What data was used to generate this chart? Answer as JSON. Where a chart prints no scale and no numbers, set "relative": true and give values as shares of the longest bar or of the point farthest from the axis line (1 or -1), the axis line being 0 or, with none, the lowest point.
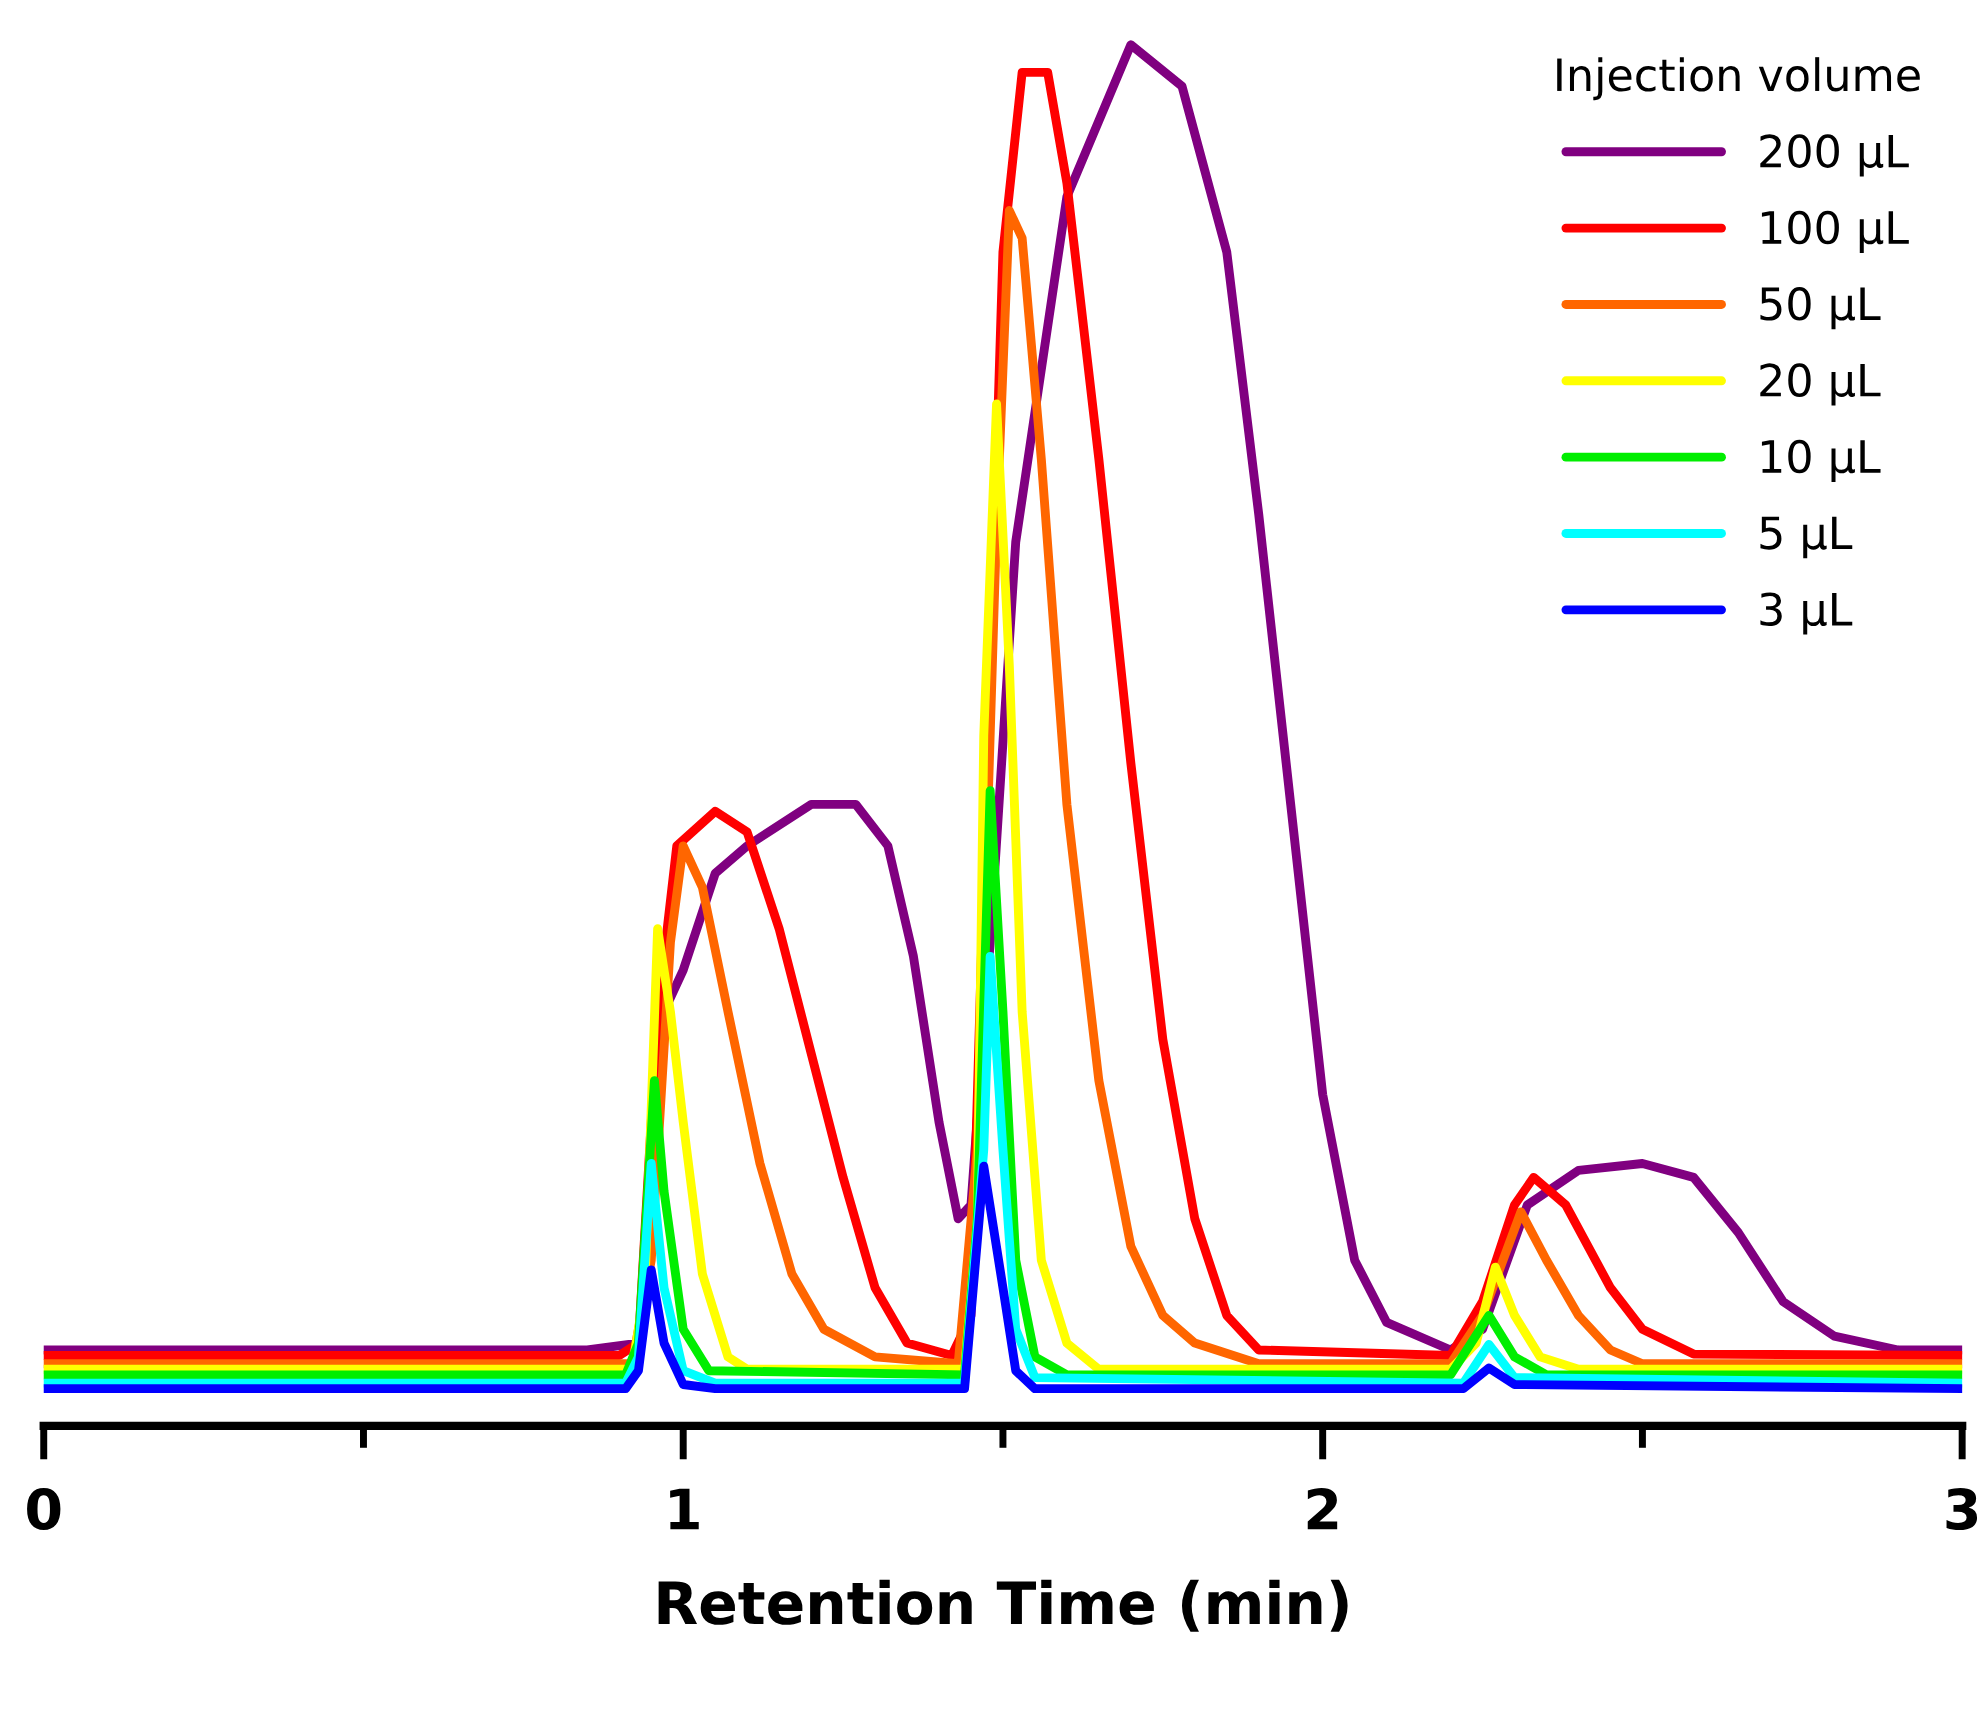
{
  "chart_data": {
    "type": "line",
    "relative": true,
    "xlabel": "Retention Time (min)",
    "legend_title": "Injection volume",
    "legend": "top right",
    "grid": false,
    "tick_labels": "x",
    "line_style": "solid",
    "marker": "none",
    "xlim": [
      0,
      3
    ],
    "xticks": [
      0,
      {
        "value": 0.5,
        "label": null
      },
      1,
      {
        "value": 1.5,
        "label": null
      },
      2,
      {
        "value": 2.5,
        "label": null
      },
      3
    ],
    "series": [
      {
        "name": "200 µL",
        "color": "#800080",
        "x": [
          0,
          0.85,
          0.93,
          0.95,
          0.97,
          1.0,
          1.05,
          1.1,
          1.2,
          1.27,
          1.32,
          1.36,
          1.4,
          1.43,
          1.45,
          1.48,
          1.52,
          1.6,
          1.7,
          1.78,
          1.85,
          1.9,
          1.95,
          2.0,
          2.05,
          2.1,
          2.2,
          2.25,
          2.32,
          2.4,
          2.5,
          2.58,
          2.65,
          2.72,
          2.8,
          2.9,
          3.0
        ],
        "values": [
          0.055,
          0.055,
          0.06,
          0.15,
          0.3,
          0.33,
          0.4,
          0.42,
          0.45,
          0.45,
          0.42,
          0.34,
          0.22,
          0.15,
          0.16,
          0.35,
          0.64,
          0.89,
          1.0,
          0.97,
          0.85,
          0.66,
          0.45,
          0.24,
          0.12,
          0.075,
          0.055,
          0.07,
          0.16,
          0.185,
          0.19,
          0.18,
          0.14,
          0.09,
          0.065,
          0.055,
          0.055
        ]
      },
      {
        "name": "100 µL",
        "color": "#ff0000",
        "x": [
          0,
          0.9,
          0.93,
          0.96,
          0.99,
          1.05,
          1.1,
          1.15,
          1.2,
          1.25,
          1.3,
          1.35,
          1.42,
          1.45,
          1.47,
          1.5,
          1.53,
          1.57,
          1.6,
          1.65,
          1.7,
          1.75,
          1.8,
          1.85,
          1.9,
          2.2,
          2.25,
          2.3,
          2.33,
          2.38,
          2.45,
          2.5,
          2.58,
          3.0
        ],
        "values": [
          0.051,
          0.051,
          0.06,
          0.3,
          0.42,
          0.445,
          0.43,
          0.36,
          0.27,
          0.18,
          0.1,
          0.06,
          0.051,
          0.08,
          0.4,
          0.85,
          0.98,
          0.98,
          0.9,
          0.7,
          0.48,
          0.28,
          0.15,
          0.08,
          0.055,
          0.051,
          0.09,
          0.16,
          0.18,
          0.16,
          0.1,
          0.07,
          0.052,
          0.051
        ]
      },
      {
        "name": "50 µL",
        "color": "#ff6600",
        "x": [
          0,
          0.92,
          0.95,
          0.98,
          1.0,
          1.03,
          1.07,
          1.12,
          1.17,
          1.22,
          1.3,
          1.43,
          1.46,
          1.49,
          1.51,
          1.53,
          1.56,
          1.6,
          1.65,
          1.7,
          1.75,
          1.8,
          1.9,
          2.2,
          2.25,
          2.29,
          2.31,
          2.35,
          2.4,
          2.45,
          2.5,
          3.0
        ],
        "values": [
          0.045,
          0.045,
          0.12,
          0.35,
          0.42,
          0.39,
          0.3,
          0.19,
          0.11,
          0.07,
          0.05,
          0.045,
          0.2,
          0.65,
          0.88,
          0.86,
          0.7,
          0.45,
          0.25,
          0.13,
          0.08,
          0.06,
          0.045,
          0.045,
          0.08,
          0.13,
          0.155,
          0.12,
          0.08,
          0.055,
          0.045,
          0.045
        ]
      },
      {
        "name": "20 µL",
        "color": "#ffff00",
        "x": [
          0,
          0.92,
          0.94,
          0.96,
          0.98,
          1.0,
          1.03,
          1.07,
          1.1,
          1.44,
          1.46,
          1.47,
          1.49,
          1.51,
          1.53,
          1.56,
          1.6,
          1.65,
          2.2,
          2.24,
          2.27,
          2.3,
          2.34,
          2.4,
          3.0
        ],
        "values": [
          0.041,
          0.041,
          0.1,
          0.36,
          0.3,
          0.22,
          0.11,
          0.05,
          0.041,
          0.041,
          0.15,
          0.5,
          0.74,
          0.55,
          0.3,
          0.12,
          0.06,
          0.041,
          0.041,
          0.06,
          0.115,
          0.08,
          0.05,
          0.041,
          0.041
        ]
      },
      {
        "name": "10 µL",
        "color": "#00ee00",
        "x": [
          0,
          0.91,
          0.93,
          0.955,
          0.97,
          1.0,
          1.04,
          1.44,
          1.46,
          1.48,
          1.5,
          1.52,
          1.55,
          1.6,
          2.2,
          2.26,
          2.3,
          2.35,
          3.0
        ],
        "values": [
          0.037,
          0.037,
          0.06,
          0.25,
          0.17,
          0.07,
          0.04,
          0.037,
          0.15,
          0.46,
          0.3,
          0.12,
          0.05,
          0.037,
          0.037,
          0.08,
          0.05,
          0.037,
          0.037
        ]
      },
      {
        "name": "5 µL",
        "color": "#00ffff",
        "x": [
          0,
          0.91,
          0.93,
          0.95,
          0.97,
          1.0,
          1.05,
          1.44,
          1.47,
          1.48,
          1.5,
          1.52,
          1.55,
          2.22,
          2.26,
          2.3,
          3.0
        ],
        "values": [
          0.031,
          0.031,
          0.05,
          0.19,
          0.1,
          0.04,
          0.031,
          0.031,
          0.2,
          0.34,
          0.2,
          0.07,
          0.035,
          0.031,
          0.059,
          0.035,
          0.031
        ]
      },
      {
        "name": "3 µL",
        "color": "#0000ff",
        "x": [
          0,
          0.91,
          0.93,
          0.95,
          0.97,
          1.0,
          1.05,
          1.44,
          1.47,
          1.5,
          1.52,
          1.55,
          2.22,
          2.26,
          2.3,
          3.0
        ],
        "values": [
          0.027,
          0.027,
          0.04,
          0.113,
          0.06,
          0.03,
          0.027,
          0.027,
          0.188,
          0.1,
          0.04,
          0.027,
          0.027,
          0.042,
          0.03,
          0.027
        ]
      }
    ]
  }
}
